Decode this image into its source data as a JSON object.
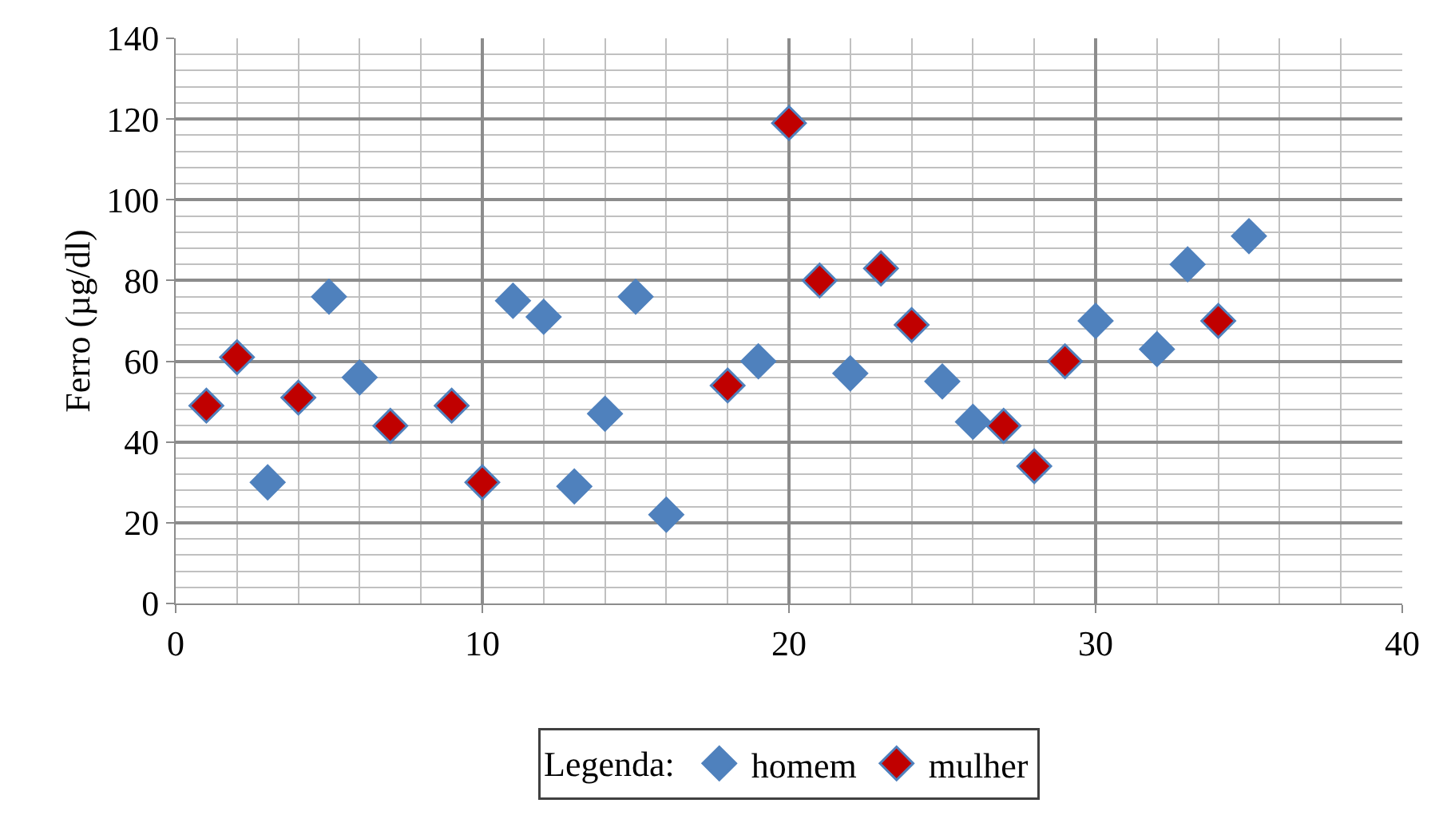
{
  "chart_data": {
    "type": "scatter",
    "ylabel": "Ferro (µg/dl)",
    "legend_title": "Legenda:",
    "legend": "bottom",
    "grid": true,
    "marker": "diamond",
    "xlim": [
      0,
      40
    ],
    "xticks": [
      0,
      10,
      20,
      30,
      40
    ],
    "ylim": [
      0,
      140
    ],
    "yticks": [
      0,
      20,
      40,
      60,
      80,
      100,
      120,
      140
    ],
    "series": [
      {
        "name": "homem",
        "color": "#4f81bd",
        "x": [
          3,
          5,
          6,
          11,
          12,
          13,
          14,
          15,
          16,
          19,
          22,
          25,
          26,
          30,
          32,
          33,
          35
        ],
        "values": [
          30,
          76,
          56,
          75,
          71,
          29,
          47,
          76,
          22,
          60,
          57,
          55,
          45,
          70,
          63,
          84,
          91
        ]
      },
      {
        "name": "mulher",
        "color": "#c00000",
        "x": [
          1,
          2,
          4,
          7,
          9,
          10,
          18,
          20,
          21,
          23,
          24,
          27,
          28,
          29,
          34
        ],
        "values": [
          49,
          61,
          51,
          44,
          49,
          30,
          54,
          119,
          80,
          83,
          69,
          44,
          34,
          60,
          70
        ]
      }
    ]
  }
}
